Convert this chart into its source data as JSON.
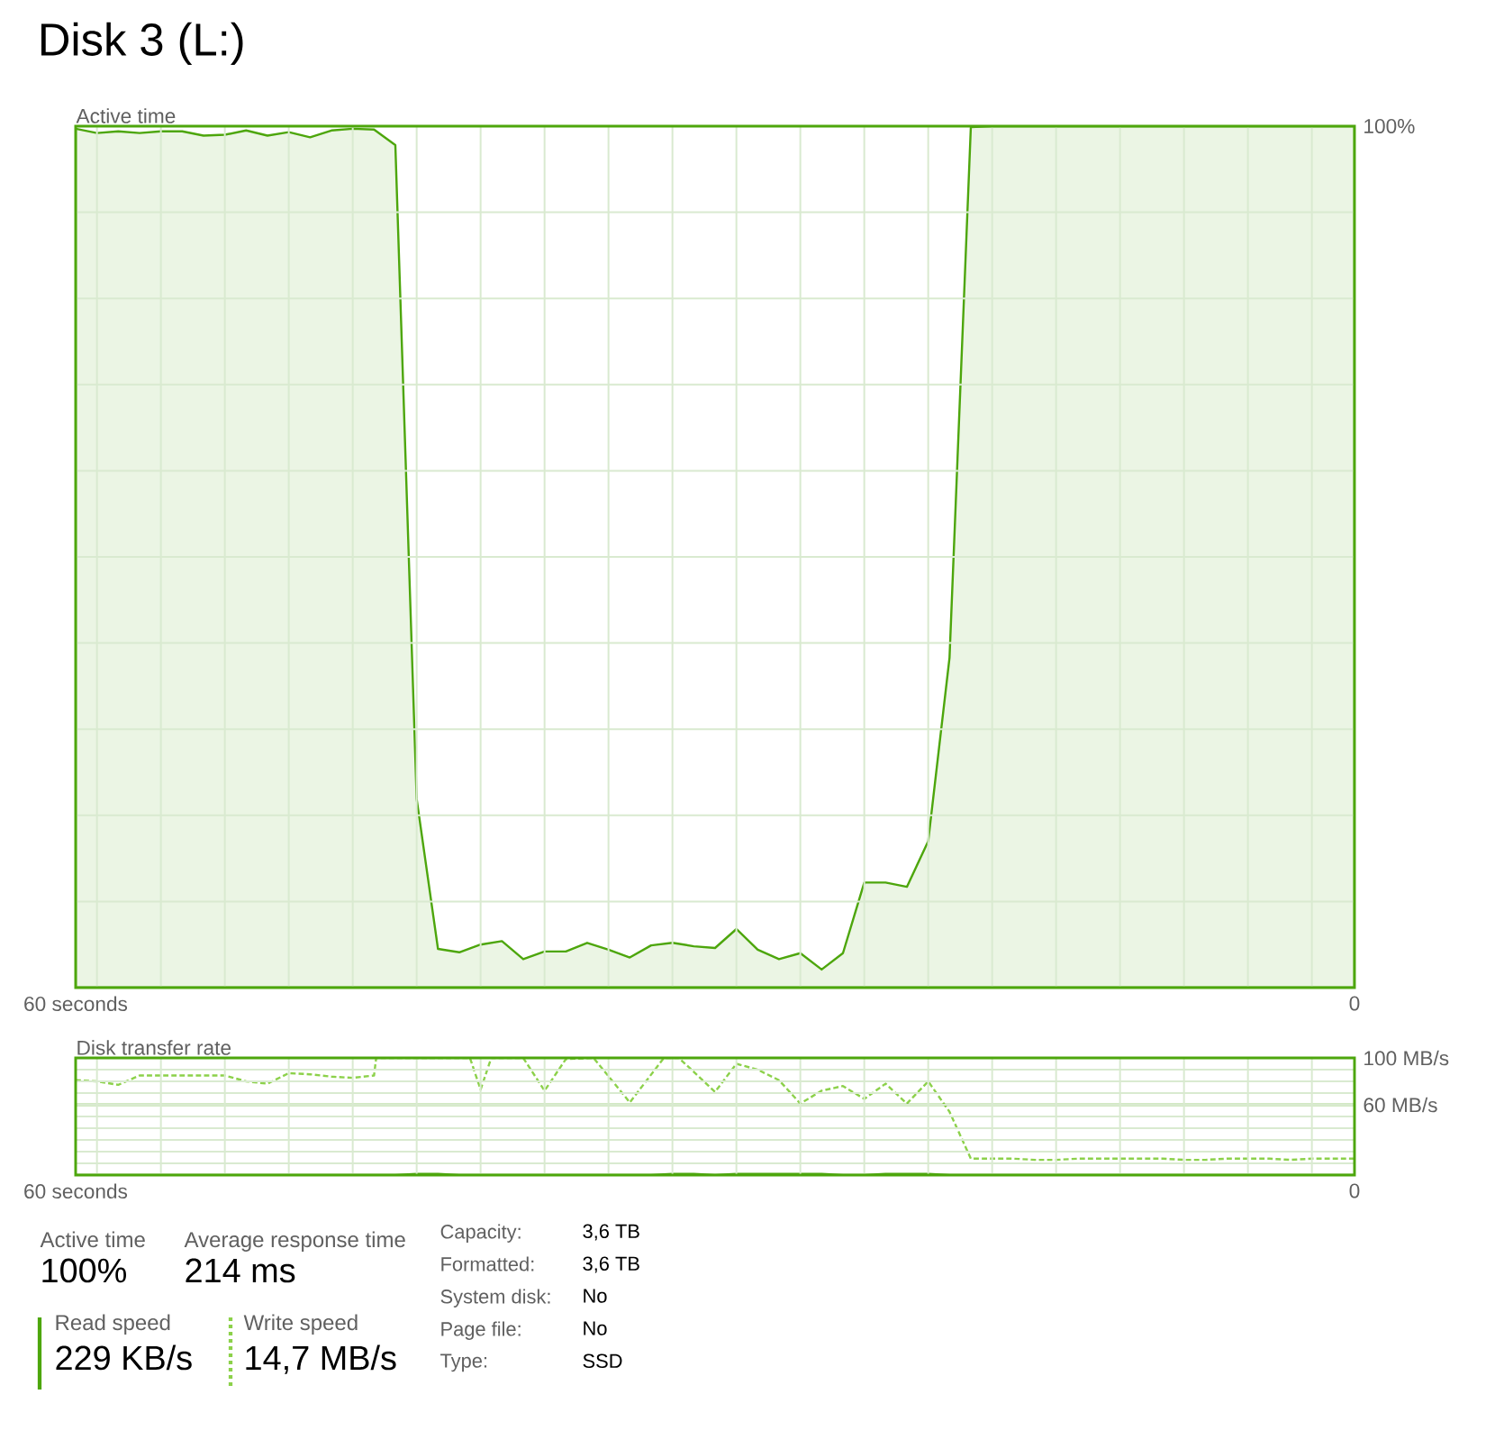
{
  "chart_data": [
    {
      "type": "area",
      "title": "Disk 3 (L:)",
      "ylabel": "Active time",
      "color": "#4da60c",
      "x": [
        60,
        59,
        58,
        57,
        56,
        55,
        54,
        53,
        52,
        51,
        50,
        49,
        48,
        47,
        46,
        45,
        44,
        43,
        42,
        41,
        40,
        39,
        38,
        37,
        36,
        35,
        34,
        33,
        32,
        31,
        30,
        29,
        28,
        27,
        26,
        25,
        24,
        23,
        22,
        21,
        20,
        19,
        18,
        17,
        16,
        15,
        14,
        13,
        12,
        11,
        10,
        9,
        8,
        7,
        6,
        5,
        4,
        3,
        2,
        1,
        0
      ],
      "values": [
        99.7,
        99.2,
        99.4,
        99.2,
        99.4,
        99.4,
        98.9,
        99.0,
        99.5,
        98.9,
        99.3,
        98.7,
        99.5,
        99.7,
        99.6,
        97.8,
        21.9,
        4.5,
        4.1,
        5.0,
        5.4,
        3.3,
        4.2,
        4.2,
        5.2,
        4.4,
        3.5,
        4.9,
        5.2,
        4.8,
        4.6,
        6.8,
        4.4,
        3.3,
        4.0,
        2.1,
        4.0,
        12.2,
        12.2,
        11.7,
        17.0,
        38.3,
        99.9,
        100,
        100,
        100,
        100,
        100,
        100,
        100,
        100,
        100,
        100,
        100,
        100,
        100,
        100,
        100,
        100,
        100,
        100
      ],
      "xlim": [
        60,
        0
      ],
      "ylim": [
        0,
        100
      ],
      "xticks": [
        {
          "value": 60,
          "label": "60 seconds"
        },
        {
          "value": 59,
          "label": null
        },
        {
          "value": 56,
          "label": null
        },
        {
          "value": 53,
          "label": null
        },
        {
          "value": 50,
          "label": null
        },
        {
          "value": 47,
          "label": null
        },
        {
          "value": 44,
          "label": null
        },
        {
          "value": 41,
          "label": null
        },
        {
          "value": 38,
          "label": null
        },
        {
          "value": 35,
          "label": null
        },
        {
          "value": 32,
          "label": null
        },
        {
          "value": 29,
          "label": null
        },
        {
          "value": 26,
          "label": null
        },
        {
          "value": 23,
          "label": null
        },
        {
          "value": 20,
          "label": null
        },
        {
          "value": 17,
          "label": null
        },
        {
          "value": 14,
          "label": null
        },
        {
          "value": 11,
          "label": null
        },
        {
          "value": 8,
          "label": null
        },
        {
          "value": 5,
          "label": null
        },
        {
          "value": 2,
          "label": null
        },
        {
          "value": 0,
          "label": "0"
        }
      ],
      "yticks": [
        {
          "value": 0,
          "label": null
        },
        {
          "value": 10,
          "label": null
        },
        {
          "value": 20,
          "label": null
        },
        {
          "value": 30,
          "label": null
        },
        {
          "value": 40,
          "label": null
        },
        {
          "value": 50,
          "label": null
        },
        {
          "value": 60,
          "label": null
        },
        {
          "value": 70,
          "label": null
        },
        {
          "value": 80,
          "label": null
        },
        {
          "value": 90,
          "label": null
        },
        {
          "value": 100,
          "label": "100%"
        }
      ],
      "grid": true
    },
    {
      "type": "line",
      "ylabel": "Disk transfer rate",
      "x": [
        60,
        59,
        58,
        57,
        56,
        55,
        54,
        53,
        52,
        51,
        50,
        49,
        48,
        47,
        46,
        45,
        44,
        43,
        42,
        41,
        40,
        39,
        38,
        37,
        36,
        35,
        34,
        33,
        32,
        31,
        30,
        29,
        28,
        27,
        26,
        25,
        24,
        23,
        22,
        21,
        20,
        19,
        18,
        17,
        16,
        15,
        14,
        13,
        12,
        11,
        10,
        9,
        8,
        7,
        6,
        5,
        4,
        3,
        2,
        1,
        0
      ],
      "series": [
        {
          "color": "#4da60c",
          "line_style": "solid",
          "values": [
            0,
            0,
            0,
            0,
            0,
            0,
            0,
            0,
            0,
            0,
            0,
            0,
            0,
            0,
            0,
            0,
            1,
            1,
            0,
            0,
            0,
            0,
            0,
            0,
            0,
            0,
            0,
            0,
            1,
            1,
            0,
            1,
            1,
            1,
            1,
            1,
            0,
            0,
            1,
            1,
            1,
            0,
            0,
            0,
            0,
            0,
            0,
            0,
            0,
            0,
            0,
            0,
            0,
            0,
            0,
            0,
            0,
            0,
            0,
            0,
            0
          ]
        },
        {
          "color": "#8cd14a",
          "line_style": "dashed",
          "x": [
            60,
            59,
            58,
            57,
            56,
            55,
            54,
            53,
            52,
            51,
            50,
            49,
            48,
            47,
            46,
            45.9,
            41.5,
            41,
            40.5,
            39,
            38,
            37,
            35.7,
            34,
            32.4,
            31.7,
            30,
            29,
            28,
            27,
            26,
            25,
            24,
            23,
            22,
            21,
            20,
            19,
            18,
            17,
            16,
            15,
            14,
            13,
            12,
            11,
            10,
            9,
            8,
            7,
            6,
            5,
            4,
            3,
            2,
            1,
            0
          ],
          "values": [
            81,
            80,
            77,
            85,
            85,
            85,
            85,
            85,
            80,
            78,
            87,
            86,
            84,
            83,
            85,
            100,
            100,
            73,
            100,
            100,
            72,
            99,
            100,
            62,
            100,
            100,
            71,
            95,
            90,
            81,
            61,
            72,
            76,
            65,
            78,
            61,
            80,
            54,
            14,
            14,
            14,
            13,
            13,
            14,
            14,
            14,
            14,
            14,
            13,
            13,
            14,
            14,
            14,
            13,
            14,
            14,
            14
          ]
        }
      ],
      "xlim": [
        60,
        0
      ],
      "ylim": [
        0,
        100
      ],
      "xticks": [
        {
          "value": 60,
          "label": "60 seconds"
        },
        {
          "value": 59,
          "label": null
        },
        {
          "value": 56,
          "label": null
        },
        {
          "value": 53,
          "label": null
        },
        {
          "value": 50,
          "label": null
        },
        {
          "value": 47,
          "label": null
        },
        {
          "value": 44,
          "label": null
        },
        {
          "value": 41,
          "label": null
        },
        {
          "value": 38,
          "label": null
        },
        {
          "value": 35,
          "label": null
        },
        {
          "value": 32,
          "label": null
        },
        {
          "value": 29,
          "label": null
        },
        {
          "value": 26,
          "label": null
        },
        {
          "value": 23,
          "label": null
        },
        {
          "value": 20,
          "label": null
        },
        {
          "value": 17,
          "label": null
        },
        {
          "value": 14,
          "label": null
        },
        {
          "value": 11,
          "label": null
        },
        {
          "value": 8,
          "label": null
        },
        {
          "value": 5,
          "label": null
        },
        {
          "value": 2,
          "label": null
        },
        {
          "value": 0,
          "label": "0"
        }
      ],
      "yticks": [
        {
          "value": 0,
          "label": null
        },
        {
          "value": 10,
          "label": null
        },
        {
          "value": 20,
          "label": null
        },
        {
          "value": 30,
          "label": null
        },
        {
          "value": 40,
          "label": null
        },
        {
          "value": 50,
          "label": null
        },
        {
          "value": 60,
          "label": "60 MB/s"
        },
        {
          "value": 70,
          "label": null
        },
        {
          "value": 80,
          "label": null
        },
        {
          "value": 90,
          "label": null
        },
        {
          "value": 100,
          "label": "100 MB/s"
        }
      ],
      "ref_lines": [
        {
          "axis": "y",
          "value": 60,
          "color": "#4da60c"
        }
      ],
      "grid": true
    },
    {
      "type": "other",
      "annotations": [
        "Active time",
        "Average response time",
        "100%",
        "214 ms",
        "Read speed",
        "Write speed",
        "229 KB/s",
        "14,7 MB/s",
        "Capacity:",
        "3,6 TB",
        "Formatted:",
        "3,6 TB",
        "System disk:",
        "No",
        "Page file:",
        "No",
        "Type:",
        "SSD"
      ]
    }
  ]
}
